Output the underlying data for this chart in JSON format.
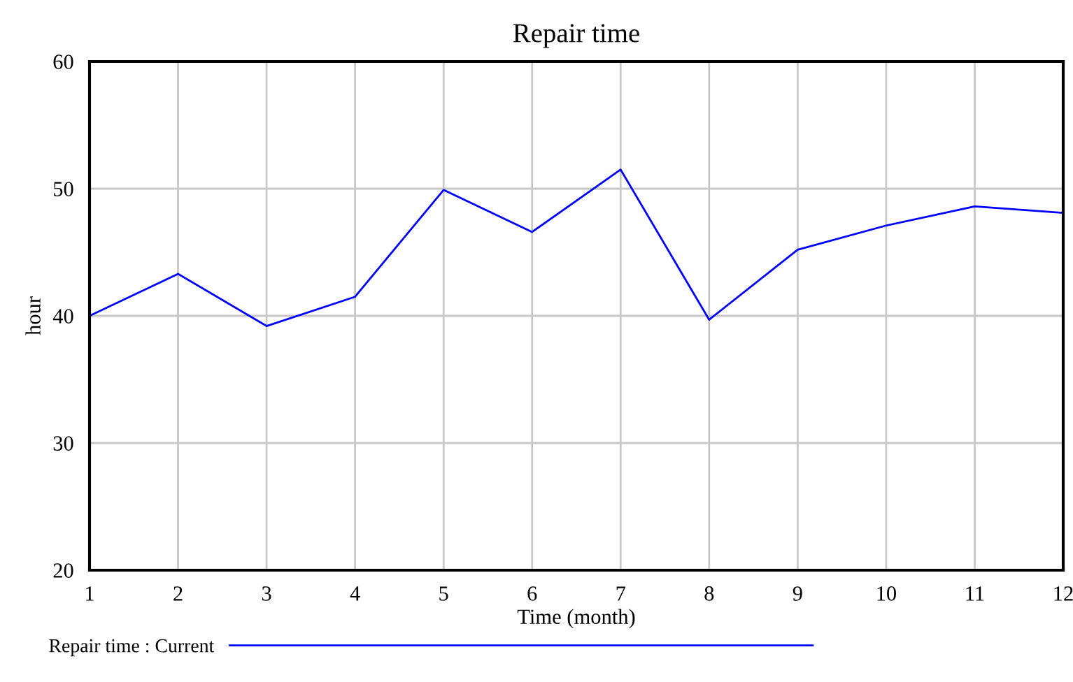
{
  "chart_data": {
    "type": "line",
    "title": "Repair time",
    "xlabel": "Time (month)",
    "ylabel": "hour",
    "x": [
      1,
      2,
      3,
      4,
      5,
      6,
      7,
      8,
      9,
      10,
      11,
      12
    ],
    "series": [
      {
        "name": "Repair time : Current",
        "color": "#0000ff",
        "values": [
          40,
          43.3,
          39.2,
          41.5,
          49.9,
          46.6,
          51.5,
          39.7,
          45.2,
          47.1,
          48.6,
          48.1
        ]
      }
    ],
    "xlim": [
      1,
      12
    ],
    "xticks": [
      1,
      2,
      3,
      4,
      5,
      6,
      7,
      8,
      9,
      10,
      11,
      12
    ],
    "ylim": [
      20,
      60
    ],
    "yticks": [
      20,
      30,
      40,
      50,
      60
    ],
    "grid": true,
    "legend": "bottom left",
    "marker": "none",
    "line_style": "solid"
  }
}
